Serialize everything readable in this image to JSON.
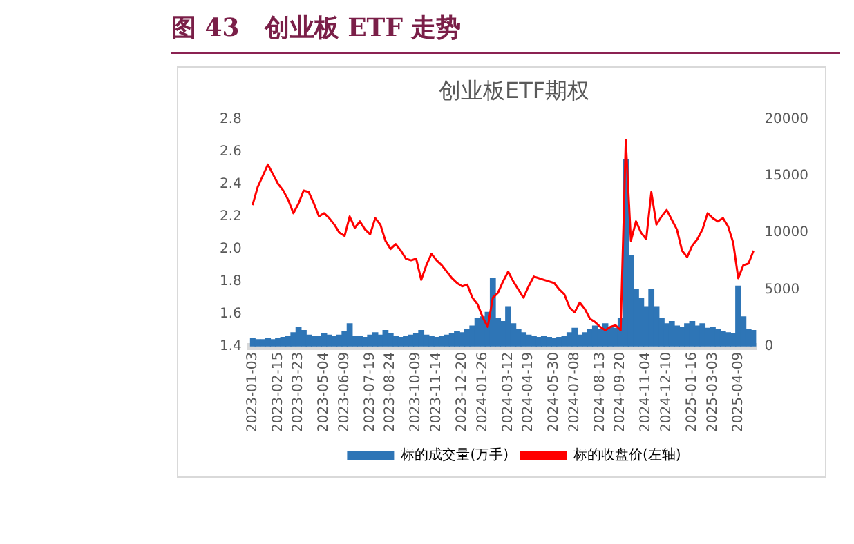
{
  "chart_data": {
    "type": "bar",
    "title": "图 43　创业板 ETF 走势",
    "subtitle": "创业板ETF期权",
    "categories": [
      "2023-01-03",
      null,
      null,
      null,
      null,
      "2023-02-15",
      null,
      null,
      null,
      "2023-03-23",
      null,
      null,
      null,
      null,
      "2023-05-04",
      null,
      null,
      null,
      "2023-06-09",
      null,
      null,
      null,
      null,
      "2023-07-19",
      null,
      null,
      null,
      "2023-08-24",
      null,
      null,
      null,
      null,
      "2023-10-09",
      null,
      null,
      null,
      "2023-11-14",
      null,
      null,
      null,
      null,
      "2023-12-20",
      null,
      null,
      null,
      "2024-01-26",
      null,
      null,
      null,
      null,
      "2024-03-12",
      null,
      null,
      null,
      "2024-04-19",
      null,
      null,
      null,
      null,
      "2024-05-30",
      null,
      null,
      null,
      "2024-07-08",
      null,
      null,
      null,
      null,
      "2024-08-13",
      null,
      null,
      null,
      "2024-09-20",
      null,
      null,
      null,
      null,
      "2024-11-04",
      null,
      null,
      null,
      "2024-12-10",
      null,
      null,
      null,
      null,
      "2025-01-16",
      null,
      null,
      null,
      "2025-03-03",
      null,
      null,
      null,
      null,
      "2025-04-09",
      null,
      null,
      null
    ],
    "series": [
      {
        "name": "标的成交量(万手)",
        "axis": "y2",
        "color": "#2e75b6",
        "values": [
          700,
          600,
          600,
          700,
          600,
          700,
          800,
          900,
          1200,
          1700,
          1400,
          1000,
          900,
          900,
          1100,
          1000,
          900,
          1000,
          1300,
          2000,
          900,
          900,
          800,
          1000,
          1200,
          1000,
          1400,
          1100,
          900,
          800,
          900,
          1000,
          1100,
          1400,
          1000,
          900,
          800,
          900,
          1000,
          1100,
          1300,
          1200,
          1500,
          1800,
          2500,
          2600,
          3000,
          6000,
          2500,
          2200,
          3500,
          2000,
          1500,
          1200,
          1000,
          900,
          800,
          900,
          800,
          700,
          800,
          900,
          1200,
          1600,
          1000,
          1200,
          1500,
          1800,
          1500,
          2000,
          1700,
          1600,
          2500,
          16400,
          8000,
          5000,
          4200,
          3500,
          5000,
          3500,
          2500,
          2000,
          2200,
          1800,
          1700,
          2000,
          2200,
          1800,
          2000,
          1600,
          1700,
          1500,
          1300,
          1200,
          1100,
          5300,
          2600,
          1500,
          1400
        ]
      },
      {
        "name": "标的收盘价(左轴)",
        "type": "line",
        "axis": "y",
        "color": "#ff0000",
        "values": [
          2.27,
          2.38,
          2.45,
          2.52,
          2.46,
          2.4,
          2.36,
          2.3,
          2.22,
          2.28,
          2.36,
          2.35,
          2.28,
          2.2,
          2.22,
          2.19,
          2.15,
          2.1,
          2.08,
          2.2,
          2.13,
          2.17,
          2.12,
          2.09,
          2.19,
          2.15,
          2.05,
          2.0,
          2.03,
          1.99,
          1.94,
          1.93,
          1.94,
          1.81,
          1.9,
          1.97,
          1.93,
          1.9,
          1.86,
          1.82,
          1.79,
          1.77,
          1.78,
          1.7,
          1.66,
          1.58,
          1.52,
          1.7,
          1.73,
          1.8,
          1.86,
          1.8,
          1.75,
          1.7,
          1.77,
          1.83,
          1.82,
          1.81,
          1.8,
          1.79,
          1.75,
          1.72,
          1.64,
          1.61,
          1.67,
          1.63,
          1.57,
          1.55,
          1.52,
          1.5,
          1.52,
          1.53,
          1.5,
          2.67,
          2.05,
          2.17,
          2.1,
          2.06,
          2.35,
          2.15,
          2.2,
          2.24,
          2.18,
          2.12,
          1.99,
          1.95,
          2.02,
          2.06,
          2.12,
          2.22,
          2.19,
          2.17,
          2.19,
          2.14,
          2.04,
          1.82,
          1.9,
          1.91,
          1.99
        ]
      }
    ],
    "ylim": [
      1.4,
      2.8
    ],
    "yticks": [
      1.4,
      1.6,
      1.8,
      {
        "value": 2,
        "label": "2.0"
      },
      2.2,
      2.4,
      2.6,
      2.8
    ],
    "y2lim": [
      0,
      20000
    ],
    "y2ticks": [
      0,
      5000,
      10000,
      15000,
      20000
    ],
    "legend": "bottom",
    "grid": false,
    "marker": "none"
  }
}
